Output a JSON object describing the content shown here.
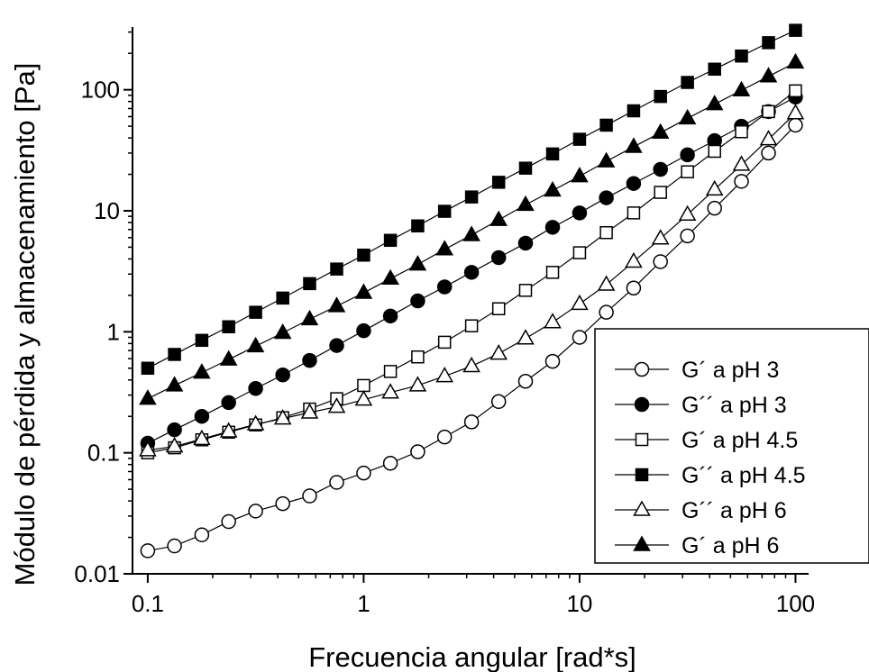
{
  "chart_data": {
    "type": "line",
    "title": "",
    "xlabel": "Frecuencia angular [rad*s]",
    "ylabel": "Módulo de pérdida y almacenamiento [Pa]",
    "xscale": "log",
    "yscale": "log",
    "xlim": [
      0.085,
      115
    ],
    "ylim": [
      0.01,
      330
    ],
    "xticks": [
      {
        "value": 0.1,
        "label": "0.1"
      },
      {
        "value": 1,
        "label": "1"
      },
      {
        "value": 10,
        "label": "10"
      },
      {
        "value": 100,
        "label": "100"
      }
    ],
    "yticks": [
      {
        "value": 0.01,
        "label": "0.01"
      },
      {
        "value": 0.1,
        "label": "0.1"
      },
      {
        "value": 1,
        "label": "1"
      },
      {
        "value": 10,
        "label": "10"
      },
      {
        "value": 100,
        "label": "100"
      }
    ],
    "grid": false,
    "legend_position": "bottom-right",
    "x": [
      0.1,
      0.133,
      0.178,
      0.237,
      0.316,
      0.422,
      0.562,
      0.75,
      1.0,
      1.33,
      1.78,
      2.37,
      3.16,
      4.22,
      5.62,
      7.5,
      10.0,
      13.3,
      17.8,
      23.7,
      31.6,
      42.2,
      56.2,
      75.0,
      100.0
    ],
    "series": [
      {
        "name": "G´ a pH 3",
        "marker": "circle-open",
        "values": [
          0.0155,
          0.017,
          0.021,
          0.027,
          0.033,
          0.038,
          0.044,
          0.057,
          0.068,
          0.082,
          0.102,
          0.135,
          0.18,
          0.265,
          0.39,
          0.57,
          0.9,
          1.45,
          2.3,
          3.8,
          6.2,
          10.5,
          17.5,
          30,
          51
        ]
      },
      {
        "name": "G´´ a pH 3",
        "marker": "circle-filled",
        "values": [
          0.12,
          0.155,
          0.2,
          0.26,
          0.34,
          0.44,
          0.58,
          0.77,
          1.02,
          1.35,
          1.8,
          2.35,
          3.1,
          4.1,
          5.4,
          7.3,
          9.6,
          12.8,
          16.8,
          22,
          29,
          38,
          50,
          66,
          87
        ]
      },
      {
        "name": "G´ a pH 4.5",
        "marker": "square-open",
        "values": [
          0.1,
          0.11,
          0.128,
          0.148,
          0.17,
          0.195,
          0.23,
          0.28,
          0.36,
          0.47,
          0.62,
          0.82,
          1.12,
          1.55,
          2.2,
          3.1,
          4.5,
          6.6,
          9.6,
          14.2,
          21,
          31,
          45,
          66,
          98
        ]
      },
      {
        "name": "G´´ a pH 4.5",
        "marker": "square-filled",
        "values": [
          0.5,
          0.65,
          0.85,
          1.1,
          1.45,
          1.9,
          2.5,
          3.3,
          4.3,
          5.7,
          7.5,
          9.9,
          13,
          17.2,
          22.5,
          29.5,
          39,
          51,
          67,
          88,
          115,
          148,
          190,
          245,
          310
        ]
      },
      {
        "name": "G´´ a pH 6",
        "marker": "triangle-open",
        "values": [
          0.105,
          0.113,
          0.13,
          0.15,
          0.172,
          0.192,
          0.215,
          0.24,
          0.275,
          0.315,
          0.36,
          0.43,
          0.52,
          0.66,
          0.88,
          1.2,
          1.7,
          2.45,
          3.8,
          5.9,
          9.3,
          15,
          24,
          39,
          64
        ]
      },
      {
        "name": "G´ a pH 6",
        "marker": "triangle-filled",
        "values": [
          0.28,
          0.36,
          0.46,
          0.59,
          0.76,
          0.98,
          1.27,
          1.63,
          2.1,
          2.75,
          3.6,
          4.8,
          6.3,
          8.4,
          11.2,
          14.7,
          19.3,
          25.6,
          33.8,
          44.2,
          58,
          76,
          99,
          129,
          168
        ]
      }
    ]
  }
}
